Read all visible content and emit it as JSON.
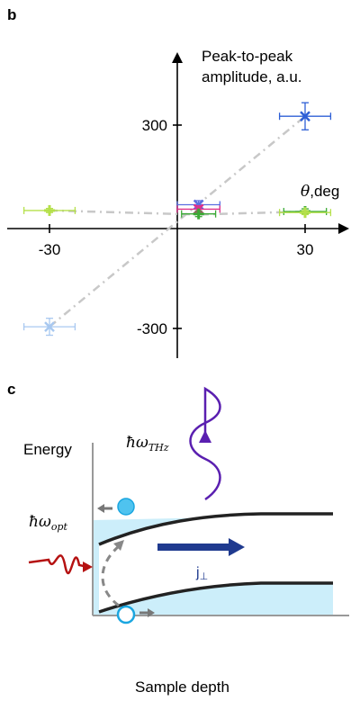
{
  "panel_b_label": "b",
  "panel_c_label": "c",
  "chart_data": {
    "type": "scatter",
    "ylabel_line1": "Peak-to-peak",
    "ylabel_line2": "amplitude, a.u.",
    "xlabel_symbol": "θ",
    "xlabel_unit": ",deg",
    "x_ticks": [
      "-30",
      "30"
    ],
    "y_ticks": [
      "300",
      "-300"
    ],
    "series": [
      {
        "color": "#2e5fd6",
        "marker": "x",
        "points": [
          {
            "x": 30,
            "y": 326,
            "xerr": 6,
            "yerr": 40
          }
        ]
      },
      {
        "color": "#a8c8f0",
        "marker": "x",
        "points": [
          {
            "x": -30,
            "y": -295,
            "xerr": 6,
            "yerr": 25
          }
        ]
      },
      {
        "color": "#5b6ee0",
        "marker": "x",
        "points": [
          {
            "x": 5,
            "y": 65,
            "xerr": 5,
            "yerr": 12
          }
        ]
      },
      {
        "color": "#e0308a",
        "marker": "x",
        "points": [
          {
            "x": 5,
            "y": 52,
            "xerr": 5,
            "yerr": 10
          }
        ]
      },
      {
        "color": "#3aaa35",
        "marker": "+",
        "points": [
          {
            "x": 5,
            "y": 38,
            "xerr": 4,
            "yerr": 8
          },
          {
            "x": 30,
            "y": 45,
            "xerr": 5,
            "yerr": 8
          }
        ]
      },
      {
        "color": "#b5e04a",
        "marker": "+",
        "points": [
          {
            "x": -30,
            "y": 48,
            "xerr": 6,
            "yerr": 6
          },
          {
            "x": 30,
            "y": 42,
            "xerr": 6,
            "yerr": 6
          }
        ]
      }
    ],
    "trend_lines": [
      {
        "color": "#c8c8c8",
        "points": [
          [
            -30,
            -295
          ],
          [
            30,
            326
          ]
        ]
      },
      {
        "color": "#c8c8c8",
        "points": [
          [
            -30,
            48
          ],
          [
            5,
            36
          ],
          [
            30,
            45
          ]
        ]
      }
    ],
    "xlim": [
      -36,
      36
    ],
    "ylim": [
      -320,
      400
    ]
  },
  "diagram": {
    "energy_label": "Energy",
    "xaxis_label": "Sample depth",
    "thz_label": "ħω",
    "thz_sub": "THz",
    "opt_label": "ħω",
    "opt_sub": "opt",
    "current_label": "j",
    "current_sub": "⊥",
    "colors": {
      "band_fill": "#cceefa",
      "thz_wave": "#5a1fb0",
      "opt_wave": "#b51212",
      "current_arrow": "#1f3a8f",
      "electron": "#4fc3ef",
      "hole_stroke": "#1aa6e0",
      "band_line": "#222222"
    }
  }
}
